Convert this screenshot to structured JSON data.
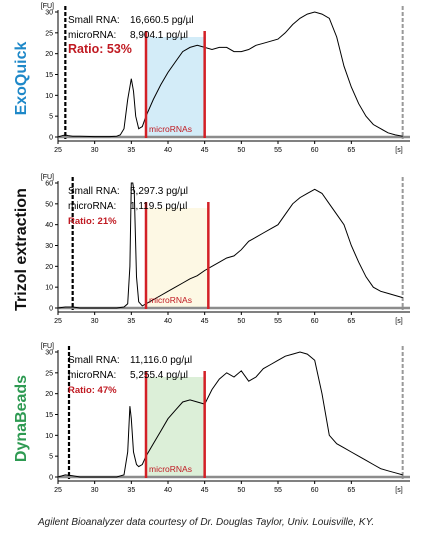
{
  "credit": "Agilent Bioanalyzer data courtesy of Dr. Douglas Taylor, Univ. Louisville, KY.",
  "chart_data": [
    {
      "type": "line",
      "method": "ExoQuick",
      "method_color": "#1e88c8",
      "small_rna_label": "Small RNA:",
      "small_rna_value": "16,660.5 pg/µl",
      "microrna_label": "microRNA:",
      "microrna_value": "8,904.1 pg/µl",
      "ratio": "Ratio: 53%",
      "region_label": "microRNAs",
      "region_color": "#d3ecf8",
      "region": [
        37,
        45
      ],
      "y_unit": "[FU]",
      "x_unit": "[s]",
      "xlim": [
        25,
        73
      ],
      "ylim": [
        0,
        30
      ],
      "x_ticks": [
        25,
        30,
        35,
        40,
        45,
        50,
        55,
        60,
        65
      ],
      "y_ticks": [
        0,
        5,
        10,
        15,
        20,
        25,
        30
      ],
      "markers": [
        26,
        72
      ],
      "x": [
        25,
        25.5,
        26,
        26.5,
        27,
        28,
        30,
        32,
        33,
        33.5,
        34,
        34.5,
        35,
        35.3,
        35.6,
        36,
        36.5,
        37,
        38,
        39,
        40,
        41,
        42,
        43,
        44,
        45,
        46,
        47,
        48,
        49,
        50,
        51,
        52,
        53,
        54,
        55,
        56,
        57,
        58,
        59,
        60,
        61,
        62,
        63,
        64,
        65,
        66,
        67,
        68,
        69,
        70,
        71,
        72
      ],
      "y": [
        0,
        0.3,
        0.5,
        0.3,
        0.2,
        0.2,
        0.1,
        0.1,
        0.2,
        0.5,
        2,
        9,
        14,
        11,
        5,
        2,
        2.5,
        5,
        9,
        12.5,
        15.5,
        18,
        20.5,
        21.5,
        22,
        21.5,
        21,
        21.5,
        21.5,
        20.5,
        20.5,
        21,
        22,
        22.5,
        23,
        23.5,
        25,
        27,
        28.5,
        29.5,
        30,
        29.5,
        28.5,
        24,
        17,
        12,
        8,
        5,
        3,
        2,
        1,
        0.5,
        0.2
      ]
    },
    {
      "type": "line",
      "method": "Trizol extraction",
      "method_color": "#111111",
      "small_rna_label": "Small RNA:",
      "small_rna_value": "5,297.3 pg/µl",
      "microrna_label": "microRNA:",
      "microrna_value": "1,119.5 pg/µl",
      "ratio": "Ratio: 21%",
      "region_label": "microRNAs",
      "region_color": "#fdf8e4",
      "region": [
        37,
        45.5
      ],
      "y_unit": "[FU]",
      "x_unit": "[s]",
      "xlim": [
        25,
        73
      ],
      "ylim": [
        0,
        60
      ],
      "x_ticks": [
        25,
        30,
        35,
        40,
        45,
        50,
        55,
        60,
        65
      ],
      "y_ticks": [
        0,
        10,
        20,
        30,
        40,
        50,
        60
      ],
      "markers": [
        27,
        72
      ],
      "x": [
        25,
        26,
        27,
        28,
        30,
        32,
        33,
        34,
        34.5,
        34.8,
        35,
        35.2,
        35.4,
        35.7,
        36,
        36.5,
        37,
        38,
        39,
        40,
        41,
        42,
        43,
        44,
        45,
        46,
        47,
        48,
        49,
        50,
        51,
        52,
        53,
        54,
        55,
        56,
        57,
        58,
        59,
        60,
        61,
        62,
        63,
        64,
        65,
        66,
        67,
        68,
        69,
        70,
        71,
        72
      ],
      "y": [
        0,
        0.5,
        0.5,
        0,
        0,
        0,
        0,
        0.5,
        2,
        20,
        60,
        60,
        55,
        15,
        3,
        1,
        2,
        4,
        6,
        8,
        10,
        12,
        14,
        15.5,
        18,
        20,
        22,
        24,
        25,
        28,
        32,
        34,
        36,
        38,
        40,
        45,
        50,
        53,
        55,
        57,
        55,
        50,
        45,
        40,
        30,
        22,
        15,
        10,
        8,
        7,
        6,
        5
      ]
    },
    {
      "type": "line",
      "method": "DynaBeads",
      "method_color": "#2e9a52",
      "small_rna_label": "Small RNA:",
      "small_rna_value": "11,116.0 pg/µl",
      "microrna_label": "microRNA:",
      "microrna_value": "5,255.4 pg/µl",
      "ratio": "Ratio: 47%",
      "region_label": "microRNAs",
      "region_color": "#dcefd8",
      "region": [
        37,
        45
      ],
      "y_unit": "[FU]",
      "x_unit": "[s]",
      "xlim": [
        25,
        73
      ],
      "ylim": [
        0,
        30
      ],
      "x_ticks": [
        25,
        30,
        35,
        40,
        45,
        50,
        55,
        60,
        65
      ],
      "y_ticks": [
        0,
        5,
        10,
        15,
        20,
        25,
        30
      ],
      "markers": [
        26.5,
        72
      ],
      "x": [
        25,
        26,
        27,
        28,
        30,
        32,
        33,
        34,
        34.5,
        34.8,
        35,
        35.3,
        35.7,
        36,
        36.5,
        37,
        38,
        39,
        40,
        41,
        42,
        43,
        44,
        45,
        46,
        47,
        48,
        49,
        50,
        51,
        52,
        53,
        54,
        55,
        56,
        57,
        58,
        59,
        60,
        61,
        62,
        63,
        64,
        65,
        66,
        67,
        68,
        69,
        70,
        71,
        72
      ],
      "y": [
        0,
        0.5,
        0.3,
        0,
        0,
        0,
        0,
        0.5,
        6,
        17,
        14,
        6,
        3,
        2.5,
        3,
        5,
        8,
        11,
        14,
        16,
        18,
        18.5,
        18,
        17.5,
        21,
        23.5,
        25,
        24,
        25.5,
        23,
        24,
        26,
        27,
        28,
        29,
        29.5,
        30,
        29.5,
        28,
        20,
        10,
        8,
        7,
        6,
        5,
        4,
        3,
        2,
        1.5,
        1,
        0.5
      ]
    }
  ]
}
